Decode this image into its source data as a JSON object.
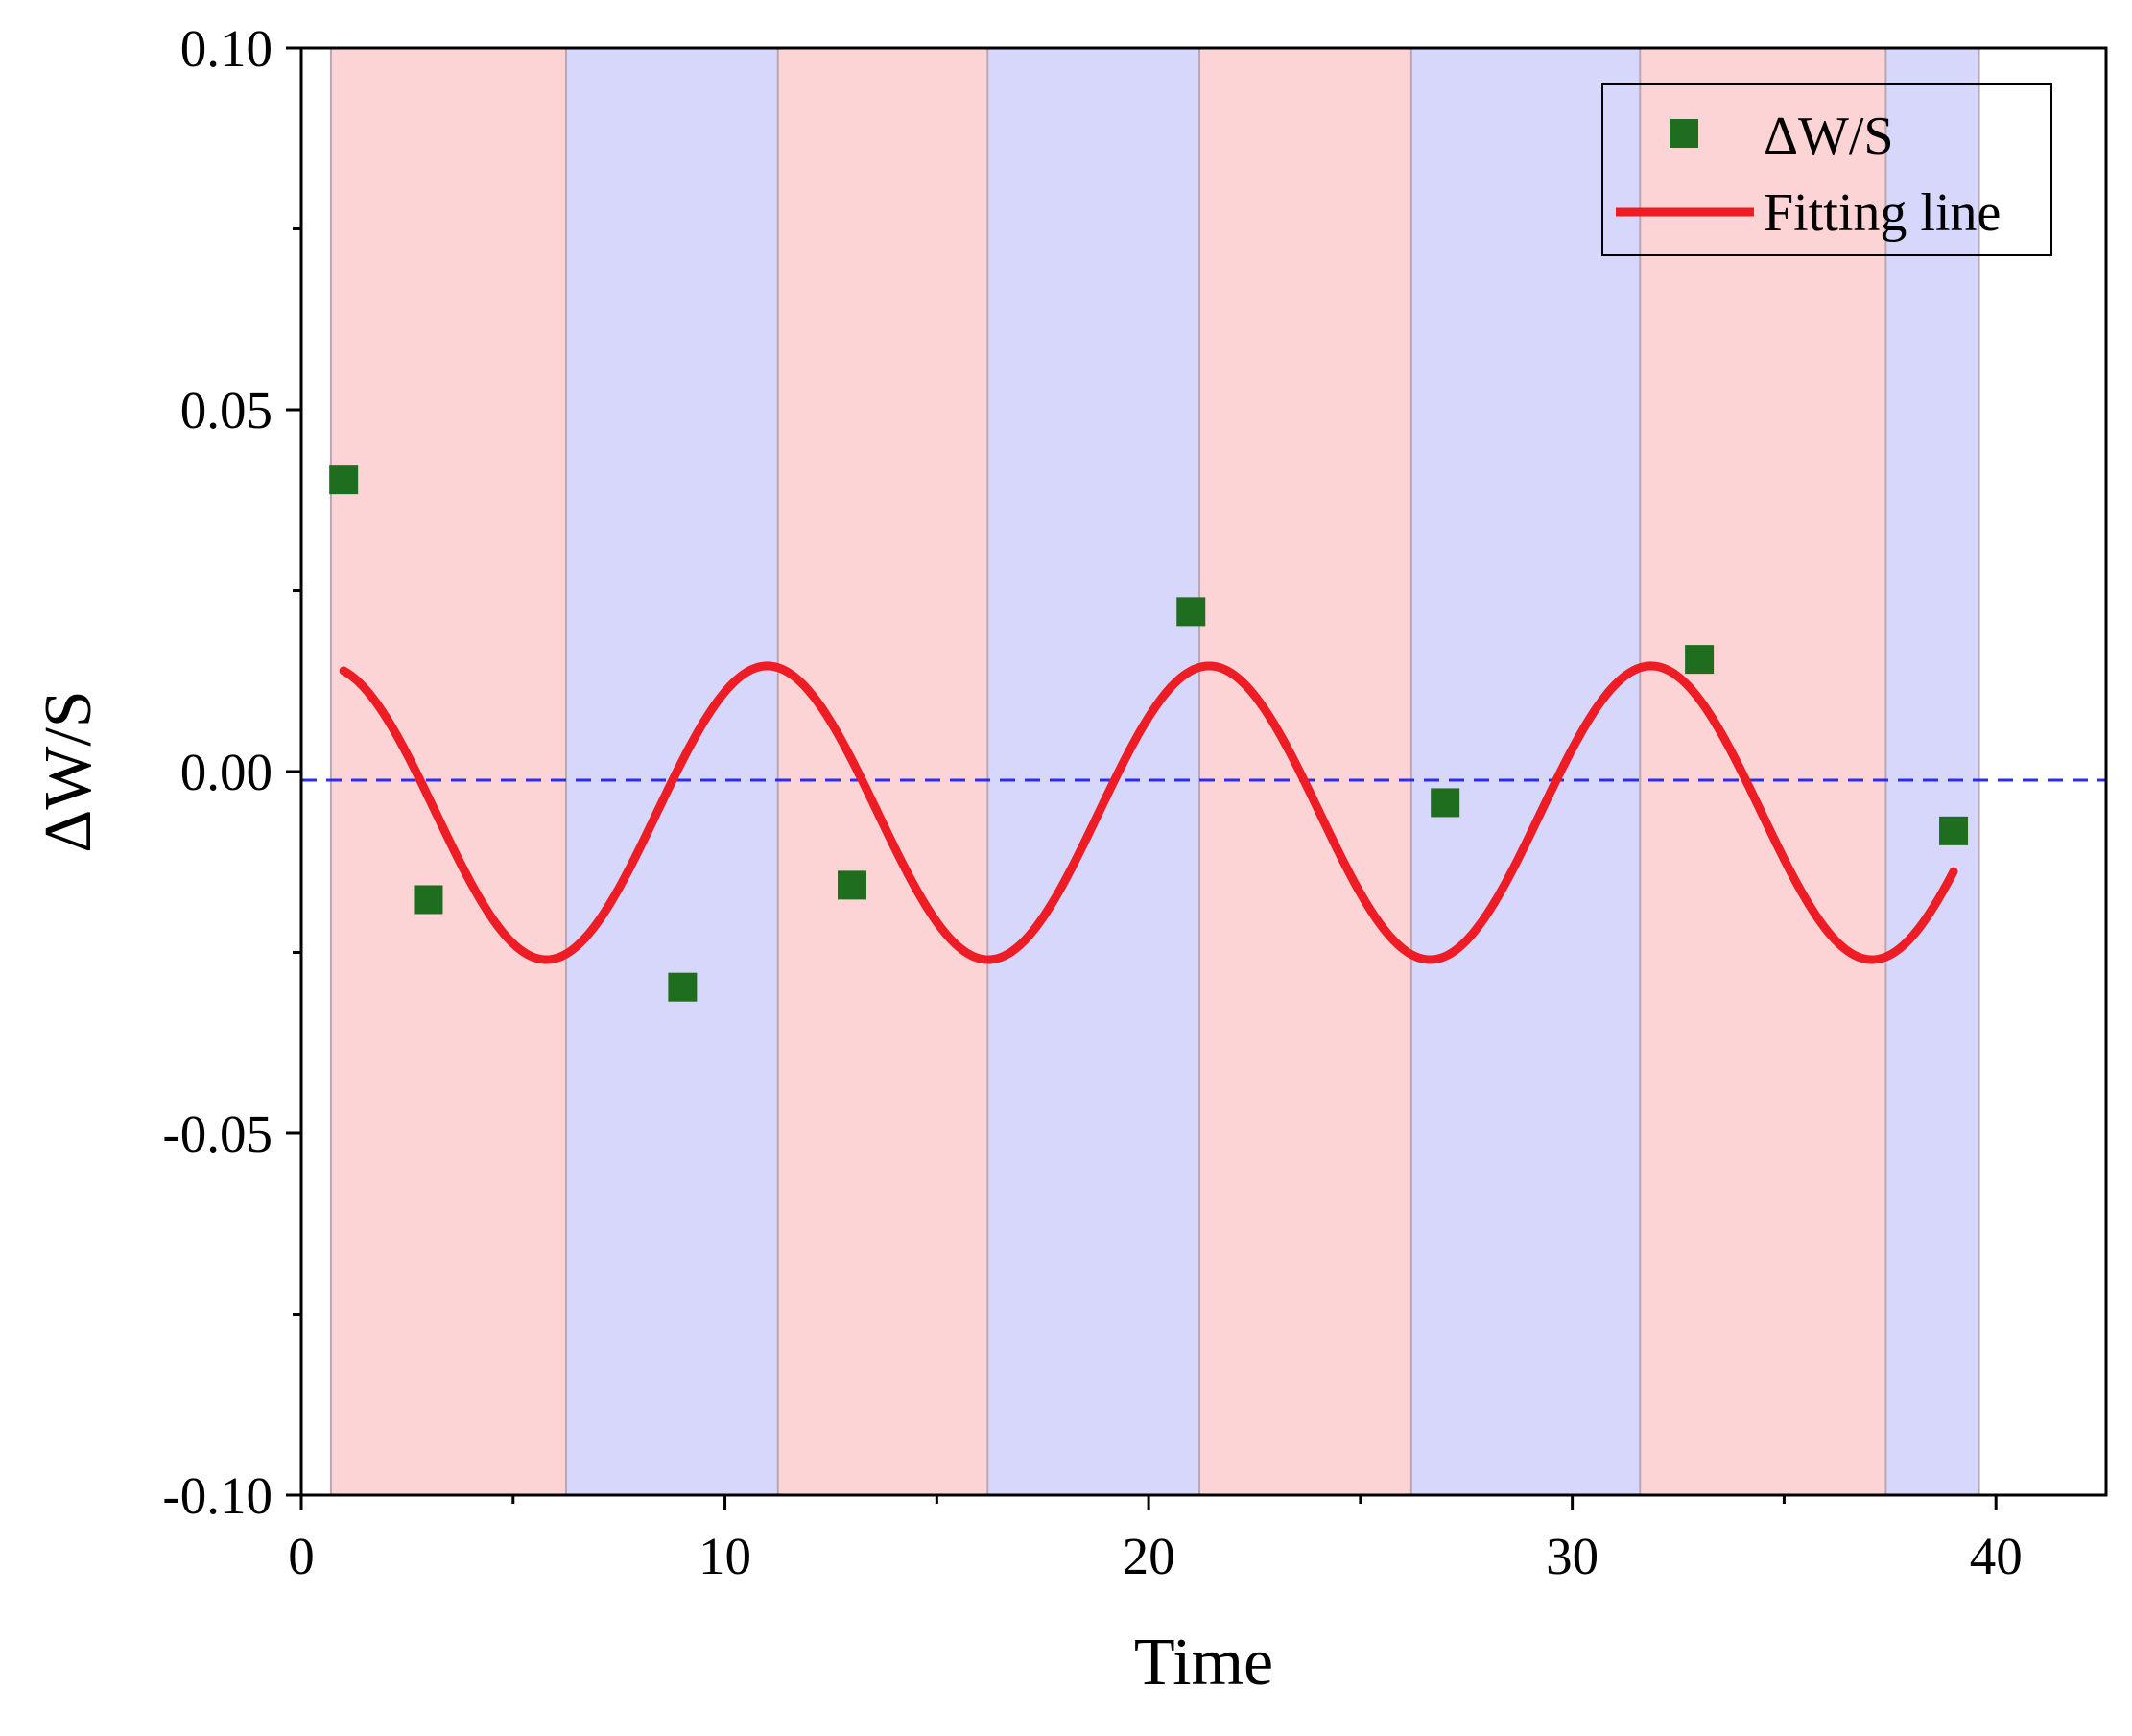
{
  "chart_data": {
    "type": "scatter",
    "title": "",
    "xlabel": "Time",
    "ylabel": "ΔW/S",
    "xlim": [
      0,
      42.6
    ],
    "ylim": [
      -0.1,
      0.1
    ],
    "x_ticks": [
      0,
      10,
      20,
      30,
      40
    ],
    "x_tick_labels": [
      "0",
      "10",
      "20",
      "30",
      "40"
    ],
    "y_ticks": [
      -0.1,
      -0.05,
      0.0,
      0.05,
      0.1
    ],
    "y_tick_labels": [
      "-0.10",
      "-0.05",
      "0.00",
      "0.05",
      "0.10"
    ],
    "series": [
      {
        "name": "ΔW/S",
        "kind": "scatter",
        "marker": "square",
        "color": "#1f6e1f",
        "x": [
          1,
          3,
          9,
          13,
          21,
          27,
          33,
          39
        ],
        "y": [
          0.0403,
          -0.0177,
          -0.0298,
          -0.0157,
          0.0221,
          -0.0043,
          0.0155,
          -0.0082
        ]
      },
      {
        "name": "Fitting line",
        "kind": "line",
        "color": "#ee1c24",
        "function": "offset + amplitude*cos(2*pi*(x - peak_x)/period)",
        "offset": -0.0057,
        "amplitude": 0.0203,
        "period": 10.43,
        "peak_x": 11.0,
        "x_range": [
          1.0,
          39.0
        ]
      }
    ],
    "reference_line": {
      "y": -0.0012,
      "style": "dashed",
      "color": "#2d2df0"
    },
    "bands": [
      {
        "from": 0.7,
        "to": 6.25,
        "color": "#fdd4d5"
      },
      {
        "from": 6.25,
        "to": 11.25,
        "color": "#d7d7fb"
      },
      {
        "from": 11.25,
        "to": 16.2,
        "color": "#fdd4d5"
      },
      {
        "from": 16.2,
        "to": 21.2,
        "color": "#d7d7fb"
      },
      {
        "from": 21.2,
        "to": 26.2,
        "color": "#fdd4d5"
      },
      {
        "from": 26.2,
        "to": 31.6,
        "color": "#d7d7fb"
      },
      {
        "from": 31.6,
        "to": 37.4,
        "color": "#fdd4d5"
      },
      {
        "from": 37.4,
        "to": 39.6,
        "color": "#d7d7fb"
      }
    ],
    "legend": {
      "position": "top-right",
      "entries": [
        {
          "label": "ΔW/S",
          "symbol": "square",
          "color": "#1f6e1f"
        },
        {
          "label": "Fitting line",
          "symbol": "line",
          "color": "#ee1c24"
        }
      ]
    },
    "grid": false
  }
}
